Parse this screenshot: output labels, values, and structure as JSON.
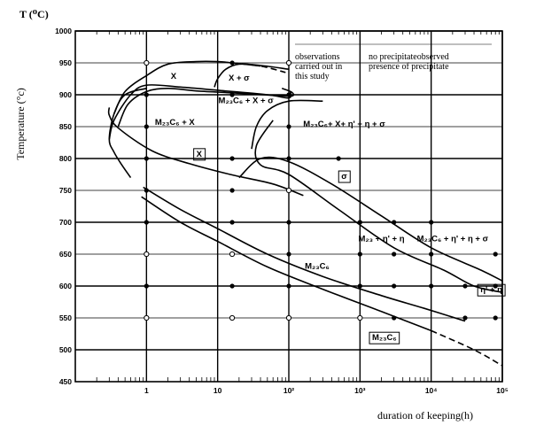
{
  "chart_data": {
    "type": "line",
    "ylabel": "Temperature (°c)",
    "ylabel_top": "T (⁰C)",
    "xlabel": "duration of keeping(h)",
    "x_scale": "log",
    "xlim": [
      0.1,
      100000
    ],
    "ylim": [
      450,
      1000
    ],
    "grid": true,
    "y_ticks": [
      "1000",
      "950",
      "900",
      "850",
      "800",
      "750",
      "700",
      "650",
      "600",
      "550",
      "500",
      "450"
    ],
    "x_ticks": [
      {
        "value": 1,
        "label": "1"
      },
      {
        "value": 10,
        "label": "10"
      },
      {
        "value": 100,
        "label": "10²"
      },
      {
        "value": 1000,
        "label": "10³"
      },
      {
        "value": 10000,
        "label": "10⁴"
      },
      {
        "value": 100000,
        "label": "10⁵"
      }
    ],
    "legend": {
      "col1_lines": [
        "observations",
        "carried out in",
        "this study"
      ],
      "col2_lines": [
        "no precipitateobserved",
        "presence of precipitate"
      ]
    },
    "open_points": [
      {
        "x": 1,
        "y": 950
      },
      {
        "x": 1,
        "y": 650
      },
      {
        "x": 1,
        "y": 550
      },
      {
        "x": 16,
        "y": 650
      },
      {
        "x": 16,
        "y": 550
      },
      {
        "x": 100,
        "y": 950
      },
      {
        "x": 100,
        "y": 750
      },
      {
        "x": 100,
        "y": 550
      },
      {
        "x": 1000,
        "y": 550
      }
    ],
    "filled_points": [
      {
        "x": 1,
        "y": 900
      },
      {
        "x": 1,
        "y": 850
      },
      {
        "x": 1,
        "y": 800
      },
      {
        "x": 1,
        "y": 750
      },
      {
        "x": 1,
        "y": 700
      },
      {
        "x": 1,
        "y": 600
      },
      {
        "x": 16,
        "y": 950
      },
      {
        "x": 16,
        "y": 900
      },
      {
        "x": 16,
        "y": 800
      },
      {
        "x": 16,
        "y": 750
      },
      {
        "x": 16,
        "y": 700
      },
      {
        "x": 16,
        "y": 600
      },
      {
        "x": 100,
        "y": 900
      },
      {
        "x": 100,
        "y": 850
      },
      {
        "x": 100,
        "y": 800
      },
      {
        "x": 100,
        "y": 700
      },
      {
        "x": 100,
        "y": 650
      },
      {
        "x": 100,
        "y": 600
      },
      {
        "x": 500,
        "y": 800
      },
      {
        "x": 1000,
        "y": 700
      },
      {
        "x": 1000,
        "y": 650
      },
      {
        "x": 1000,
        "y": 600
      },
      {
        "x": 3000,
        "y": 700
      },
      {
        "x": 3000,
        "y": 650
      },
      {
        "x": 3000,
        "y": 600
      },
      {
        "x": 3000,
        "y": 550
      },
      {
        "x": 10000,
        "y": 700
      },
      {
        "x": 10000,
        "y": 650
      },
      {
        "x": 10000,
        "y": 600
      },
      {
        "x": 30000,
        "y": 600
      },
      {
        "x": 30000,
        "y": 550
      },
      {
        "x": 80000,
        "y": 650
      },
      {
        "x": 80000,
        "y": 600
      },
      {
        "x": 80000,
        "y": 550
      }
    ],
    "curves": [
      {
        "id": "chi-start",
        "dashed": false,
        "points": [
          [
            0.35,
            870
          ],
          [
            0.5,
            905
          ],
          [
            1,
            930
          ],
          [
            2,
            948
          ],
          [
            5,
            952
          ],
          [
            10,
            952
          ],
          [
            16,
            950
          ],
          [
            40,
            945
          ]
        ]
      },
      {
        "id": "chi-sigma-dashed",
        "dashed": true,
        "points": [
          [
            16,
            950
          ],
          [
            40,
            945
          ],
          [
            90,
            935
          ]
        ]
      },
      {
        "id": "chi-lower",
        "dashed": false,
        "points": [
          [
            0.4,
            850
          ],
          [
            0.55,
            885
          ],
          [
            1,
            905
          ],
          [
            2,
            910
          ],
          [
            5,
            906
          ],
          [
            16,
            903
          ],
          [
            60,
            899
          ],
          [
            110,
            898
          ],
          [
            110,
            904
          ],
          [
            80,
            910
          ]
        ]
      },
      {
        "id": "chi-sigma-region",
        "dashed": false,
        "points": [
          [
            9,
            912
          ],
          [
            10,
            925
          ],
          [
            13,
            940
          ],
          [
            20,
            948
          ],
          [
            40,
            946
          ],
          [
            100,
            940
          ]
        ]
      },
      {
        "id": "sigma-nose",
        "dashed": false,
        "points": [
          [
            30,
            815
          ],
          [
            35,
            850
          ],
          [
            50,
            875
          ],
          [
            100,
            890
          ],
          [
            300,
            890
          ]
        ]
      },
      {
        "id": "chi-envelope",
        "dashed": false,
        "points": [
          [
            0.3,
            830
          ],
          [
            0.35,
            860
          ],
          [
            0.6,
            900
          ],
          [
            1,
            915
          ],
          [
            3,
            912
          ],
          [
            10,
            907
          ],
          [
            50,
            900
          ],
          [
            100,
            895
          ],
          [
            105,
            905
          ]
        ]
      },
      {
        "id": "chi-nose",
        "dashed": false,
        "points": [
          [
            160,
            742
          ],
          [
            60,
            760
          ],
          [
            15,
            775
          ],
          [
            4,
            792
          ],
          [
            1.2,
            812
          ],
          [
            0.4,
            848
          ],
          [
            0.3,
            868
          ],
          [
            0.3,
            880
          ]
        ]
      },
      {
        "id": "m23c6-chi-boundary",
        "dashed": false,
        "points": [
          [
            0.6,
            770
          ],
          [
            0.45,
            790
          ],
          [
            0.35,
            810
          ],
          [
            0.3,
            830
          ],
          [
            0.35,
            870
          ],
          [
            0.5,
            900
          ],
          [
            1,
            910
          ]
        ]
      },
      {
        "id": "m23c6-upper",
        "dashed": false,
        "points": [
          [
            20,
            770
          ],
          [
            40,
            800
          ],
          [
            100,
            795
          ],
          [
            400,
            760
          ],
          [
            2000,
            710
          ],
          [
            10000,
            660
          ],
          [
            50000,
            625
          ],
          [
            100000,
            608
          ]
        ]
      },
      {
        "id": "m23c6-lower",
        "dashed": false,
        "points": [
          [
            0.9,
            755
          ],
          [
            3,
            720
          ],
          [
            10,
            690
          ],
          [
            50,
            650
          ],
          [
            300,
            615
          ],
          [
            2000,
            585
          ],
          [
            8000,
            565
          ],
          [
            30000,
            545
          ]
        ]
      },
      {
        "id": "eta-nose",
        "dashed": false,
        "points": [
          [
            60,
            860
          ],
          [
            35,
            820
          ],
          [
            40,
            790
          ],
          [
            100,
            775
          ],
          [
            500,
            720
          ],
          [
            3000,
            660
          ],
          [
            15000,
            625
          ],
          [
            40000,
            600
          ],
          [
            100000,
            590
          ]
        ]
      },
      {
        "id": "lower-tail",
        "dashed": false,
        "points": [
          [
            0.85,
            740
          ],
          [
            3,
            700
          ],
          [
            10,
            670
          ],
          [
            50,
            630
          ],
          [
            300,
            595
          ],
          [
            2000,
            560
          ],
          [
            10000,
            530
          ]
        ]
      },
      {
        "id": "lower-tail-dashed",
        "dashed": true,
        "points": [
          [
            10000,
            530
          ],
          [
            40000,
            500
          ],
          [
            100000,
            475
          ]
        ]
      }
    ],
    "region_labels": [
      {
        "text": "X",
        "x": 2.4,
        "y": 925
      },
      {
        "text": "X + σ",
        "x": 20,
        "y": 922
      },
      {
        "text": "M₂₃C₆ + X + σ",
        "x": 25,
        "y": 887
      },
      {
        "text": "M₂₃C₆ + X",
        "x": 2.5,
        "y": 853
      },
      {
        "text": "M₂₃C₆+ X+ η' + η + σ",
        "x": 600,
        "y": 850
      },
      {
        "text": "M₂₃ + η' + η",
        "x": 2000,
        "y": 670
      },
      {
        "text": "M₂₃C₆ + η' + η + σ",
        "x": 20000,
        "y": 670
      },
      {
        "text": "M₂₃C₆",
        "x": 250,
        "y": 627
      }
    ],
    "boxed_labels": [
      {
        "text": "X",
        "x": 5.5,
        "y": 803
      },
      {
        "text": "σ",
        "x": 600,
        "y": 768
      },
      {
        "text": "η' + η",
        "x": 70000,
        "y": 590
      },
      {
        "text": "M₂₃C₆",
        "x": 2200,
        "y": 515
      }
    ]
  }
}
